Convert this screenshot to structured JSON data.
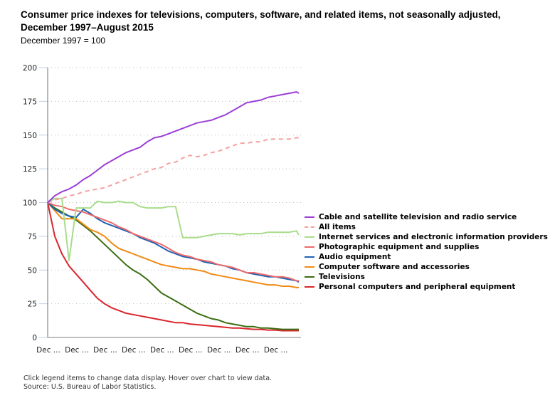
{
  "chart_data": {
    "type": "line",
    "title": "Consumer price indexes for televisions, computers, software, and related items, not seasonally adjusted, December 1997–August 2015",
    "subtitle": "December 1997 = 100",
    "xlabel": "",
    "ylabel": "",
    "ylim": [
      0,
      200
    ],
    "yticks": [
      0,
      25,
      50,
      75,
      100,
      125,
      150,
      175,
      200
    ],
    "xlim_months": [
      0,
      212
    ],
    "x_tick_months": [
      0,
      24,
      48,
      72,
      96,
      120,
      144,
      168,
      192
    ],
    "x_tick_labels": [
      "Dec ...",
      "Dec ...",
      "Dec ...",
      "Dec ...",
      "Dec ...",
      "Dec ...",
      "Dec ...",
      "Dec ...",
      "Dec ..."
    ],
    "x_unit": "months since December 1997",
    "grid": true,
    "legend_position": "right",
    "x": [
      0,
      6,
      12,
      18,
      24,
      30,
      36,
      42,
      48,
      54,
      60,
      66,
      72,
      78,
      84,
      90,
      96,
      102,
      108,
      114,
      120,
      126,
      132,
      138,
      144,
      150,
      156,
      162,
      168,
      174,
      180,
      186,
      192,
      198,
      204,
      210,
      212
    ],
    "series": [
      {
        "name": "Cable and satellite television and radio service",
        "color": "#9b3fd6",
        "dashed": false,
        "values": [
          100,
          105,
          108,
          110,
          113,
          117,
          120,
          124,
          128,
          131,
          134,
          137,
          139,
          141,
          145,
          148,
          149,
          151,
          153,
          155,
          157,
          159,
          160,
          161,
          163,
          165,
          168,
          171,
          174,
          175,
          176,
          178,
          179,
          180,
          181,
          182,
          181
        ]
      },
      {
        "name": "All items",
        "color": "#f4a0a0",
        "dashed": true,
        "values": [
          100,
          102,
          103,
          105,
          106,
          108,
          109,
          110,
          111,
          113,
          115,
          117,
          119,
          121,
          123,
          125,
          126,
          129,
          130,
          133,
          135,
          134,
          135,
          137,
          138,
          140,
          142,
          144,
          144,
          145,
          145,
          147,
          147,
          147,
          147,
          148,
          148
        ]
      },
      {
        "name": "Internet services and electronic information providers",
        "color": "#a8dc8c",
        "dashed": false,
        "values": [
          100,
          103,
          103,
          57,
          96,
          96,
          96,
          101,
          100,
          100,
          101,
          100,
          100,
          97,
          96,
          96,
          96,
          97,
          97,
          74,
          74,
          74,
          75,
          76,
          77,
          77,
          77,
          76,
          77,
          77,
          77,
          78,
          78,
          78,
          78,
          79,
          76
        ]
      },
      {
        "name": "Photographic equipment and supplies",
        "color": "#f06a6a",
        "dashed": false,
        "values": [
          100,
          98,
          97,
          95,
          94,
          93,
          91,
          89,
          87,
          85,
          82,
          80,
          77,
          75,
          73,
          71,
          69,
          66,
          63,
          61,
          60,
          58,
          57,
          56,
          54,
          53,
          52,
          50,
          48,
          48,
          47,
          46,
          45,
          45,
          44,
          42,
          42
        ]
      },
      {
        "name": "Audio equipment",
        "color": "#1f63b5",
        "dashed": false,
        "values": [
          100,
          95,
          92,
          90,
          89,
          95,
          92,
          88,
          85,
          83,
          81,
          79,
          77,
          74,
          72,
          70,
          67,
          64,
          62,
          60,
          59,
          58,
          56,
          55,
          54,
          53,
          51,
          50,
          48,
          47,
          46,
          45,
          45,
          44,
          43,
          42,
          41
        ]
      },
      {
        "name": "Computer software and accessories",
        "color": "#f28a14",
        "dashed": false,
        "values": [
          100,
          94,
          88,
          88,
          88,
          84,
          80,
          78,
          75,
          70,
          66,
          64,
          62,
          60,
          58,
          56,
          54,
          53,
          52,
          51,
          51,
          50,
          49,
          47,
          46,
          45,
          44,
          43,
          42,
          41,
          40,
          39,
          39,
          38,
          38,
          37,
          37
        ]
      },
      {
        "name": "Televisions",
        "color": "#3a6e12",
        "dashed": false,
        "values": [
          100,
          96,
          93,
          90,
          87,
          83,
          79,
          74,
          69,
          64,
          59,
          54,
          50,
          47,
          43,
          38,
          33,
          30,
          27,
          24,
          21,
          18,
          16,
          14,
          13,
          11,
          10,
          9,
          8,
          8,
          7,
          7,
          6.5,
          6,
          6,
          6,
          6
        ]
      },
      {
        "name": "Personal computers and peripheral equipment",
        "color": "#d9262c",
        "dashed": false,
        "values": [
          100,
          75,
          62,
          53,
          47,
          41,
          35,
          29,
          25,
          22,
          20,
          18,
          17,
          16,
          15,
          14,
          13,
          12,
          11,
          11,
          10,
          9.5,
          9,
          8.5,
          8,
          7.5,
          7,
          7,
          6.5,
          6,
          6,
          5.5,
          5.5,
          5,
          5,
          5,
          5
        ]
      }
    ]
  },
  "footer": {
    "note": "Click legend items to change data display. Hover over chart to view data.",
    "source": "Source: U.S. Bureau of Labor Statistics."
  }
}
